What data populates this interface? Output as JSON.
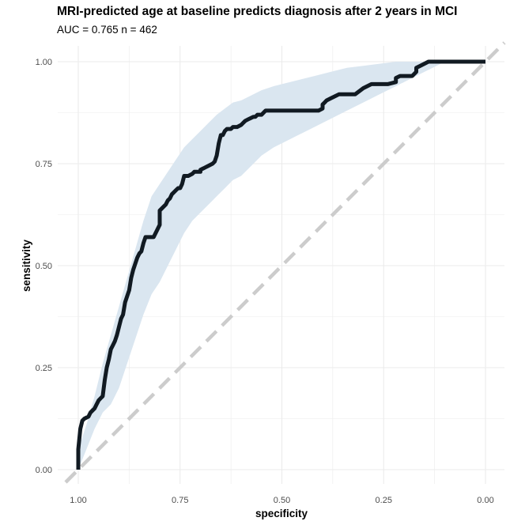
{
  "chart_data": {
    "type": "line",
    "title": "MRI-predicted age at baseline predicts diagnosis after 2 years in MCI",
    "subtitle": "AUC =  0.765 n =  462",
    "xlabel": "specificity",
    "ylabel": "sensitivity",
    "x_reversed": true,
    "xlim": [
      0,
      1
    ],
    "ylim": [
      0,
      1
    ],
    "x_ticks": [
      1.0,
      0.75,
      0.5,
      0.25,
      0.0
    ],
    "x_tick_labels": [
      "1.00",
      "0.75",
      "0.50",
      "0.25",
      "0.00"
    ],
    "y_ticks": [
      0.0,
      0.25,
      0.5,
      0.75,
      1.0
    ],
    "y_tick_labels": [
      "0.00",
      "0.25",
      "0.50",
      "0.75",
      "1.00"
    ],
    "grid": true,
    "colors": {
      "roc": "#111a22",
      "band": "#dae6f0",
      "diagonal": "#cccccc",
      "grid": "#ebebeb"
    },
    "roc_curve": {
      "specificity": [
        1.0,
        1.0,
        1.0,
        0.995,
        0.99,
        0.985,
        0.975,
        0.97,
        0.965,
        0.96,
        0.955,
        0.95,
        0.945,
        0.94,
        0.935,
        0.93,
        0.925,
        0.92,
        0.915,
        0.91,
        0.905,
        0.9,
        0.895,
        0.89,
        0.885,
        0.88,
        0.875,
        0.87,
        0.865,
        0.86,
        0.855,
        0.85,
        0.845,
        0.84,
        0.835,
        0.83,
        0.825,
        0.82,
        0.815,
        0.8,
        0.8,
        0.79,
        0.785,
        0.78,
        0.775,
        0.77,
        0.765,
        0.76,
        0.755,
        0.75,
        0.745,
        0.74,
        0.735,
        0.73,
        0.72,
        0.715,
        0.71,
        0.7,
        0.7,
        0.69,
        0.68,
        0.67,
        0.665,
        0.66,
        0.655,
        0.65,
        0.645,
        0.64,
        0.635,
        0.63,
        0.625,
        0.62,
        0.615,
        0.61,
        0.6,
        0.595,
        0.59,
        0.58,
        0.57,
        0.565,
        0.56,
        0.555,
        0.55,
        0.54,
        0.535,
        0.53,
        0.52,
        0.515,
        0.51,
        0.5,
        0.49,
        0.47,
        0.45,
        0.43,
        0.41,
        0.4,
        0.4,
        0.395,
        0.39,
        0.38,
        0.37,
        0.36,
        0.35,
        0.34,
        0.33,
        0.32,
        0.3,
        0.28,
        0.26,
        0.24,
        0.22,
        0.22,
        0.21,
        0.2,
        0.19,
        0.18,
        0.17,
        0.17,
        0.16,
        0.14,
        0.12,
        0.1,
        0.08,
        0.06,
        0.04,
        0.02,
        0.0
      ],
      "sensitivity": [
        0.0,
        0.03,
        0.05,
        0.1,
        0.12,
        0.125,
        0.13,
        0.14,
        0.145,
        0.15,
        0.16,
        0.17,
        0.175,
        0.18,
        0.22,
        0.25,
        0.27,
        0.295,
        0.305,
        0.315,
        0.33,
        0.35,
        0.37,
        0.38,
        0.41,
        0.425,
        0.44,
        0.47,
        0.49,
        0.505,
        0.52,
        0.53,
        0.535,
        0.555,
        0.57,
        0.57,
        0.57,
        0.57,
        0.57,
        0.6,
        0.635,
        0.645,
        0.65,
        0.66,
        0.665,
        0.675,
        0.68,
        0.685,
        0.69,
        0.69,
        0.7,
        0.72,
        0.72,
        0.72,
        0.725,
        0.73,
        0.73,
        0.73,
        0.735,
        0.74,
        0.745,
        0.75,
        0.755,
        0.77,
        0.8,
        0.82,
        0.82,
        0.83,
        0.835,
        0.835,
        0.835,
        0.84,
        0.84,
        0.84,
        0.845,
        0.85,
        0.855,
        0.86,
        0.865,
        0.865,
        0.87,
        0.87,
        0.87,
        0.88,
        0.88,
        0.88,
        0.88,
        0.88,
        0.88,
        0.88,
        0.88,
        0.88,
        0.88,
        0.88,
        0.88,
        0.885,
        0.895,
        0.9,
        0.905,
        0.91,
        0.915,
        0.92,
        0.92,
        0.92,
        0.92,
        0.92,
        0.935,
        0.945,
        0.945,
        0.945,
        0.95,
        0.96,
        0.965,
        0.965,
        0.965,
        0.965,
        0.975,
        0.985,
        0.99,
        1.0,
        1.0,
        1.0,
        1.0,
        1.0,
        1.0,
        1.0,
        1.0
      ]
    },
    "confidence_band": {
      "specificity": [
        1.0,
        0.98,
        0.96,
        0.94,
        0.92,
        0.9,
        0.88,
        0.86,
        0.84,
        0.82,
        0.8,
        0.78,
        0.76,
        0.74,
        0.72,
        0.7,
        0.68,
        0.66,
        0.64,
        0.62,
        0.6,
        0.58,
        0.55,
        0.52,
        0.5,
        0.46,
        0.42,
        0.38,
        0.34,
        0.3,
        0.26,
        0.22,
        0.18,
        0.15,
        0.12,
        0.1,
        0.05,
        0.0
      ],
      "lower": [
        0.0,
        0.05,
        0.1,
        0.14,
        0.16,
        0.2,
        0.26,
        0.32,
        0.38,
        0.43,
        0.46,
        0.5,
        0.54,
        0.58,
        0.61,
        0.63,
        0.65,
        0.67,
        0.69,
        0.71,
        0.72,
        0.74,
        0.77,
        0.79,
        0.8,
        0.82,
        0.84,
        0.86,
        0.88,
        0.9,
        0.92,
        0.94,
        0.96,
        0.975,
        0.99,
        1.0,
        1.0,
        1.0
      ],
      "upper": [
        0.05,
        0.11,
        0.18,
        0.26,
        0.33,
        0.4,
        0.47,
        0.54,
        0.61,
        0.67,
        0.7,
        0.73,
        0.76,
        0.79,
        0.81,
        0.83,
        0.85,
        0.87,
        0.885,
        0.9,
        0.905,
        0.915,
        0.93,
        0.94,
        0.945,
        0.955,
        0.965,
        0.975,
        0.985,
        0.99,
        0.995,
        1.0,
        1.0,
        1.0,
        1.0,
        1.0,
        1.0,
        1.0
      ]
    },
    "reference_line": {
      "from": [
        1.0,
        0.0
      ],
      "to": [
        0.0,
        1.0
      ],
      "style": "dashed"
    }
  }
}
